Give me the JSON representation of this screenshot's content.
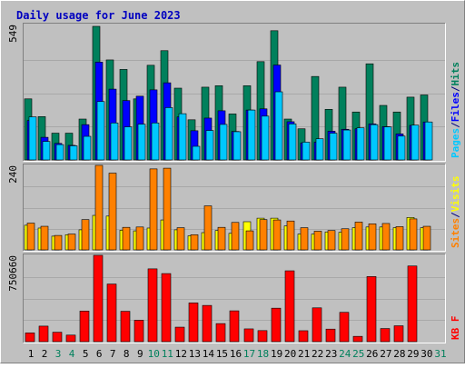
{
  "chart_data": {
    "type": "bar",
    "title": "Daily usage for June 2023",
    "categories": [
      "1",
      "2",
      "3",
      "4",
      "5",
      "6",
      "7",
      "8",
      "9",
      "10",
      "11",
      "12",
      "13",
      "14",
      "15",
      "16",
      "17",
      "18",
      "19",
      "20",
      "21",
      "22",
      "23",
      "24",
      "25",
      "26",
      "27",
      "28",
      "29",
      "30",
      "31"
    ],
    "weekend_days": [
      "3",
      "4",
      "10",
      "11",
      "17",
      "18",
      "24",
      "25",
      "31"
    ],
    "panels": [
      {
        "id": "hits-files-pages",
        "ymax_label": "549",
        "ymax": 549,
        "legend": [
          {
            "text": "Pages",
            "color": "#00c8ff"
          },
          {
            "text": "/",
            "color": "#000080"
          },
          {
            "text": "Files",
            "color": "#0000ff"
          },
          {
            "text": "/",
            "color": "#000080"
          },
          {
            "text": "Hits",
            "color": "#00805c"
          }
        ],
        "series": [
          {
            "name": "Hits",
            "color": "#00805c",
            "values": [
              251,
              178,
              110,
              110,
              168,
              549,
              411,
              372,
              251,
              389,
              449,
              295,
              165,
              299,
              305,
              189,
              305,
              404,
              531,
              168,
              128,
              343,
              208,
              299,
              197,
              395,
              224,
              197,
              258,
              267,
              null
            ]
          },
          {
            "name": "Files",
            "color": "#0000ff",
            "values": [
              162,
              93,
              68,
              60,
              145,
              402,
              291,
              244,
              262,
              288,
              317,
              177,
              120,
              172,
              202,
              117,
              205,
              210,
              390,
              157,
              70,
              73,
              118,
              126,
              128,
              148,
              137,
              107,
              142,
              156,
              null
            ]
          },
          {
            "name": "Pages",
            "color": "#00c8ff",
            "values": [
              177,
              76,
              63,
              58,
              97,
              240,
              152,
              136,
              147,
              152,
              215,
              190,
              56,
              121,
              146,
              116,
              205,
              180,
              280,
              148,
              73,
              87,
              110,
              123,
              132,
              145,
              136,
              98,
              143,
              156,
              null
            ]
          }
        ]
      },
      {
        "id": "sites-visits",
        "ymax_label": "240",
        "ymax": 240,
        "legend": [
          {
            "text": "Sites",
            "color": "#ff8000"
          },
          {
            "text": "/",
            "color": "#000080"
          },
          {
            "text": "Visits",
            "color": "#ffff00"
          }
        ],
        "series": [
          {
            "name": "Visits",
            "color": "#ffff00",
            "values": [
              70,
              62,
              39,
              43,
              57,
              98,
              96,
              56,
              54,
              62,
              85,
              57,
              40,
              49,
              55,
              47,
              80,
              90,
              90,
              68,
              45,
              45,
              51,
              50,
              63,
              65,
              65,
              63,
              92,
              63,
              null
            ]
          },
          {
            "name": "Sites",
            "color": "#ff8000",
            "values": [
              76,
              67,
              41,
              45,
              86,
              240,
              218,
              64,
              65,
              230,
              232,
              63,
              43,
              125,
              64,
              78,
              54,
              86,
              85,
              82,
              63,
              53,
              55,
              60,
              79,
              74,
              75,
              66,
              88,
              67,
              null
            ]
          }
        ]
      },
      {
        "id": "kbf",
        "ymax_label": "750660",
        "ymax": 750660,
        "legend": [
          {
            "text": "KB F",
            "color": "#ff0000"
          }
        ],
        "series": [
          {
            "name": "KB F",
            "color": "#ff0000",
            "values": [
              76000,
              135000,
              82000,
              57000,
              266000,
              750660,
              501000,
              264000,
              186000,
              633000,
              592000,
              126000,
              337000,
              315000,
              157000,
              268000,
              111000,
              96000,
              291000,
              616000,
              95000,
              294000,
              109000,
              255000,
              46000,
              566000,
              114000,
              138000,
              658000,
              null,
              null
            ]
          }
        ]
      }
    ]
  }
}
